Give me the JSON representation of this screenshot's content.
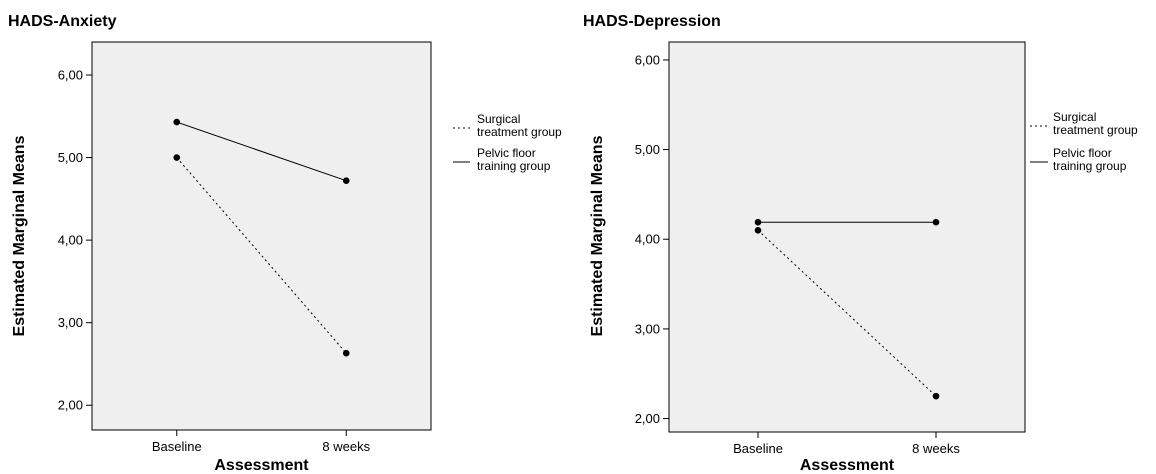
{
  "chart_data": [
    {
      "type": "line",
      "title": "HADS-Anxiety",
      "xlabel": "Assessment",
      "ylabel": "Estimated Marginal Means",
      "categories": [
        "Baseline",
        "8 weeks"
      ],
      "ylim": [
        1.7,
        6.4
      ],
      "yticks": [
        "2,00",
        "3,00",
        "4,00",
        "5,00",
        "6,00"
      ],
      "yticks_values": [
        2,
        3,
        4,
        5,
        6
      ],
      "grid": false,
      "legend_position": "right",
      "series": [
        {
          "name": "Surgical treatment group",
          "values": [
            5.0,
            2.63
          ],
          "line": "dotted"
        },
        {
          "name": "Pelvic floor training group",
          "values": [
            5.43,
            4.72
          ],
          "line": "solid"
        }
      ]
    },
    {
      "type": "line",
      "title": "HADS-Depression",
      "xlabel": "Assessment",
      "ylabel": "Estimated Marginal Means",
      "categories": [
        "Baseline",
        "8 weeks"
      ],
      "ylim": [
        1.85,
        6.2
      ],
      "yticks": [
        "2,00",
        "3,00",
        "4,00",
        "5,00",
        "6,00"
      ],
      "yticks_values": [
        2,
        3,
        4,
        5,
        6
      ],
      "grid": false,
      "legend_position": "right",
      "series": [
        {
          "name": "Surgical treatment group",
          "values": [
            4.1,
            2.25
          ],
          "line": "dotted"
        },
        {
          "name": "Pelvic floor training group",
          "values": [
            4.19,
            4.19
          ],
          "line": "solid"
        }
      ]
    }
  ],
  "colors": {
    "plot_background": "#efefef",
    "line": "#000000",
    "page": "#ffffff"
  },
  "legend_labels": [
    [
      "Surgical",
      "treatment group"
    ],
    [
      "Pelvic floor",
      "training group"
    ]
  ]
}
